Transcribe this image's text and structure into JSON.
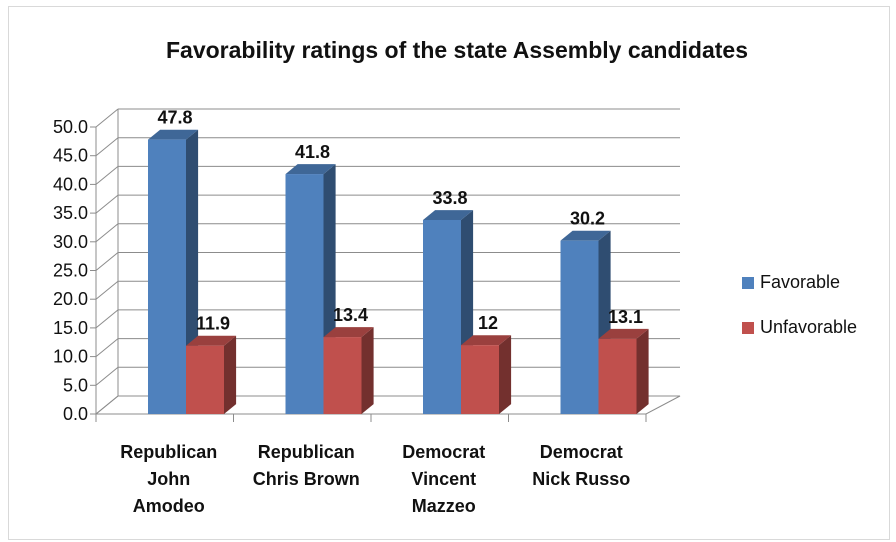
{
  "chart_data": {
    "type": "bar",
    "title": "Favorability ratings of the state Assembly candidates",
    "categories": [
      [
        "Republican",
        "John",
        "Amodeo"
      ],
      [
        "Republican",
        "Chris Brown"
      ],
      [
        "Democrat",
        "Vincent",
        "Mazzeo"
      ],
      [
        "Democrat",
        "Nick Russo"
      ]
    ],
    "series": [
      {
        "name": "Favorable",
        "values": [
          47.8,
          41.8,
          33.8,
          30.2
        ],
        "labels": [
          "47.8",
          "41.8",
          "33.8",
          "30.2"
        ],
        "color": "#4f81bd"
      },
      {
        "name": "Unfavorable",
        "values": [
          11.9,
          13.4,
          12,
          13.1
        ],
        "labels": [
          "11.9",
          "13.4",
          "12",
          "13.1"
        ],
        "color": "#c0504d"
      }
    ],
    "ylim": [
      0,
      50
    ],
    "yticks": [
      "0.0",
      "5.0",
      "10.0",
      "15.0",
      "20.0",
      "25.0",
      "30.0",
      "35.0",
      "40.0",
      "45.0",
      "50.0"
    ],
    "grid": true,
    "legend": "right",
    "xlabel": "",
    "ylabel": ""
  }
}
